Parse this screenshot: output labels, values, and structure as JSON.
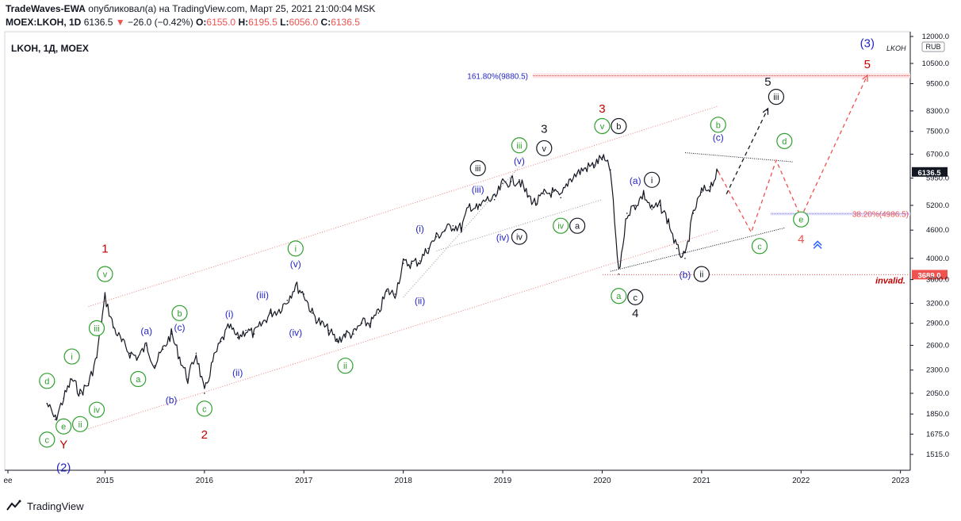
{
  "header": {
    "author": "TradeWaves-EWA",
    "published": "опубликовал(а) на TradingView.com, Март 25, 2021 21:00:04 MSK",
    "symbol": "MOEX:LKOH, 1D",
    "last": "6136.5",
    "change_arrow": "▼",
    "change": "−26.0 (−0.42%)",
    "o_label": "O:",
    "o": "6155.0",
    "h_label": "H:",
    "h": "6195.5",
    "l_label": "L:",
    "l": "6056.0",
    "c_label": "C:",
    "c": "6136.5"
  },
  "chart_title": "LKOH, 1Д, MOEX",
  "watermark": "LKOH",
  "currency": "RUB",
  "footer": {
    "brand": "TradingView"
  },
  "colors": {
    "up": "#131722",
    "accent_red": "#ef5350",
    "blue": "#2424c8",
    "green": "#2ea02e",
    "black": "#131722",
    "dark_red": "#c00000"
  },
  "chart_data": {
    "type": "line",
    "scale": "log",
    "x_ticks": [
      "ee",
      "2015",
      "2016",
      "2017",
      "2018",
      "2019",
      "2020",
      "2021",
      "2022",
      "2023"
    ],
    "y_ticks": [
      12000,
      10500,
      9500,
      8300,
      7500,
      6700,
      5950,
      5200,
      4600,
      4000,
      3600,
      3200,
      2900,
      2600,
      2300,
      2050,
      1850,
      1675,
      1515
    ],
    "y_tick_labels": [
      "12000.0",
      "10500.0",
      "9500.0",
      "8300.0",
      "7500.0",
      "6700.0",
      "5950.0",
      "5200.0",
      "4600.0",
      "4000.0",
      "3600.0",
      "3200.0",
      "2900.0",
      "2600.0",
      "2300.0",
      "2050.0",
      "1850.0",
      "1675.0",
      "1515.0"
    ],
    "ylim": [
      1400,
      12500
    ],
    "price": {
      "x": [
        "2014-06",
        "2014-07",
        "2014-08",
        "2014-09",
        "2014-10",
        "2014-11",
        "2014-12",
        "2015-01",
        "2015-02",
        "2015-03",
        "2015-04",
        "2015-05",
        "2015-06",
        "2015-07",
        "2015-08",
        "2015-09",
        "2015-10",
        "2015-11",
        "2015-12",
        "2016-01",
        "2016-02",
        "2016-03",
        "2016-04",
        "2016-05",
        "2016-06",
        "2016-07",
        "2016-08",
        "2016-09",
        "2016-10",
        "2016-11",
        "2016-12",
        "2017-01",
        "2017-02",
        "2017-03",
        "2017-04",
        "2017-05",
        "2017-06",
        "2017-07",
        "2017-08",
        "2017-09",
        "2017-10",
        "2017-11",
        "2017-12",
        "2018-01",
        "2018-02",
        "2018-03",
        "2018-04",
        "2018-05",
        "2018-06",
        "2018-07",
        "2018-08",
        "2018-09",
        "2018-10",
        "2018-11",
        "2018-12",
        "2019-01",
        "2019-02",
        "2019-03",
        "2019-04",
        "2019-05",
        "2019-06",
        "2019-07",
        "2019-08",
        "2019-09",
        "2019-10",
        "2019-11",
        "2019-12",
        "2020-01",
        "2020-02",
        "2020-03",
        "2020-04",
        "2020-05",
        "2020-06",
        "2020-07",
        "2020-08",
        "2020-09",
        "2020-10",
        "2020-11",
        "2020-12",
        "2021-01",
        "2021-02",
        "2021-03"
      ],
      "y": [
        1950,
        1800,
        2000,
        2200,
        2050,
        2150,
        2450,
        3300,
        2850,
        2650,
        2500,
        2450,
        2600,
        2350,
        2550,
        2750,
        2450,
        2200,
        2500,
        2050,
        2400,
        2650,
        2850,
        2700,
        2800,
        2750,
        2900,
        3050,
        3100,
        3250,
        3500,
        3350,
        3050,
        2900,
        2800,
        2650,
        2750,
        2750,
        2900,
        2900,
        3050,
        3400,
        3350,
        3900,
        3900,
        3950,
        4200,
        4450,
        4600,
        4700,
        4650,
        5200,
        5100,
        5350,
        5350,
        5800,
        5850,
        5900,
        5450,
        5250,
        5500,
        5550,
        5400,
        5900,
        6100,
        6250,
        6350,
        6600,
        6200,
        3700,
        5000,
        5200,
        5500,
        5100,
        5200,
        4800,
        4200,
        4000,
        5000,
        5550,
        5700,
        6136.5
      ]
    },
    "levels": [
      {
        "label": "161.80%(9880.5)",
        "value": 9880.5
      },
      {
        "label": "38.20%(4986.5)",
        "value": 4986.5
      },
      {
        "label": "3689.0",
        "value": 3689.0,
        "note": "invalid."
      }
    ],
    "last_price_label": "6136.5",
    "projection_red": {
      "x": [
        "2021-03",
        "2021-07",
        "2021-10",
        "2022-01",
        "2022-09"
      ],
      "y": [
        6150,
        4550,
        6500,
        4900,
        9900
      ]
    },
    "projection_black": {
      "x": [
        "2021-04",
        "2021-09"
      ],
      "y": [
        5500,
        8400
      ]
    },
    "wave_labels": [
      {
        "text": "(2)",
        "x": "2014-08",
        "y": 1420,
        "color": "blue",
        "style": "plain"
      },
      {
        "text": "Y",
        "x": "2014-08",
        "y": 1590,
        "color": "dark_red",
        "style": "plain"
      },
      {
        "text": "c",
        "x": "2014-06",
        "y": 1630,
        "color": "green",
        "style": "circle"
      },
      {
        "text": "e",
        "x": "2014-08",
        "y": 1740,
        "color": "green",
        "style": "circle"
      },
      {
        "text": "d",
        "x": "2014-06",
        "y": 2180,
        "color": "green",
        "style": "circle"
      },
      {
        "text": "i",
        "x": "2014-09",
        "y": 2460,
        "color": "green",
        "style": "circle"
      },
      {
        "text": "ii",
        "x": "2014-10",
        "y": 1760,
        "color": "green",
        "style": "circle"
      },
      {
        "text": "iii",
        "x": "2014-12",
        "y": 2830,
        "color": "green",
        "style": "circle"
      },
      {
        "text": "iv",
        "x": "2014-12",
        "y": 1890,
        "color": "green",
        "style": "circle"
      },
      {
        "text": "v",
        "x": "2015-01",
        "y": 3700,
        "color": "green",
        "style": "circle"
      },
      {
        "text": "1",
        "x": "2015-01",
        "y": 4200,
        "color": "dark_red",
        "style": "plain"
      },
      {
        "text": "(a)",
        "x": "2015-06",
        "y": 2800,
        "color": "blue",
        "style": "plain"
      },
      {
        "text": "a",
        "x": "2015-05",
        "y": 2200,
        "color": "green",
        "style": "circle"
      },
      {
        "text": "b",
        "x": "2015-10",
        "y": 3050,
        "color": "green",
        "style": "circle"
      },
      {
        "text": "(c)",
        "x": "2015-10",
        "y": 2850,
        "color": "blue",
        "style": "plain"
      },
      {
        "text": "(b)",
        "x": "2015-09",
        "y": 1990,
        "color": "blue",
        "style": "plain"
      },
      {
        "text": "c",
        "x": "2016-01",
        "y": 1900,
        "color": "green",
        "style": "circle"
      },
      {
        "text": "2",
        "x": "2016-01",
        "y": 1670,
        "color": "dark_red",
        "style": "plain"
      },
      {
        "text": "(i)",
        "x": "2016-04",
        "y": 3050,
        "color": "blue",
        "style": "plain"
      },
      {
        "text": "(ii)",
        "x": "2016-05",
        "y": 2280,
        "color": "blue",
        "style": "plain"
      },
      {
        "text": "(iii)",
        "x": "2016-08",
        "y": 3350,
        "color": "blue",
        "style": "plain"
      },
      {
        "text": "(iv)",
        "x": "2016-12",
        "y": 2780,
        "color": "blue",
        "style": "plain"
      },
      {
        "text": "(v)",
        "x": "2016-12",
        "y": 3900,
        "color": "blue",
        "style": "plain"
      },
      {
        "text": "i",
        "x": "2016-12",
        "y": 4200,
        "color": "green",
        "style": "circle"
      },
      {
        "text": "ii",
        "x": "2017-06",
        "y": 2350,
        "color": "green",
        "style": "circle"
      },
      {
        "text": "(i)",
        "x": "2018-03",
        "y": 4650,
        "color": "blue",
        "style": "plain"
      },
      {
        "text": "(ii)",
        "x": "2018-03",
        "y": 3250,
        "color": "blue",
        "style": "plain"
      },
      {
        "text": "(iii)",
        "x": "2018-10",
        "y": 5650,
        "color": "blue",
        "style": "plain"
      },
      {
        "text": "iii",
        "x": "2018-10",
        "y": 6250,
        "color": "black",
        "style": "circle"
      },
      {
        "text": "(iv)",
        "x": "2019-01",
        "y": 4450,
        "color": "blue",
        "style": "plain"
      },
      {
        "text": "iv",
        "x": "2019-03",
        "y": 4450,
        "color": "black",
        "style": "circle"
      },
      {
        "text": "(v)",
        "x": "2019-03",
        "y": 6500,
        "color": "blue",
        "style": "plain"
      },
      {
        "text": "iii",
        "x": "2019-03",
        "y": 7000,
        "color": "green",
        "style": "circle"
      },
      {
        "text": "v",
        "x": "2019-06",
        "y": 6900,
        "color": "black",
        "style": "circle"
      },
      {
        "text": "3",
        "x": "2019-06",
        "y": 7600,
        "color": "black",
        "style": "plain"
      },
      {
        "text": "iv",
        "x": "2019-08",
        "y": 4700,
        "color": "green",
        "style": "circle"
      },
      {
        "text": "a",
        "x": "2019-10",
        "y": 4700,
        "color": "black",
        "style": "circle"
      },
      {
        "text": "v",
        "x": "2020-01",
        "y": 7700,
        "color": "green",
        "style": "circle"
      },
      {
        "text": "b",
        "x": "2020-03",
        "y": 7700,
        "color": "black",
        "style": "circle"
      },
      {
        "text": "3",
        "x": "2020-01",
        "y": 8400,
        "color": "dark_red",
        "style": "plain"
      },
      {
        "text": "a",
        "x": "2020-03",
        "y": 3320,
        "color": "green",
        "style": "circle"
      },
      {
        "text": "c",
        "x": "2020-05",
        "y": 3300,
        "color": "black",
        "style": "circle"
      },
      {
        "text": "4",
        "x": "2020-05",
        "y": 3050,
        "color": "black",
        "style": "plain"
      },
      {
        "text": "(a)",
        "x": "2020-05",
        "y": 5900,
        "color": "blue",
        "style": "plain"
      },
      {
        "text": "i",
        "x": "2020-07",
        "y": 5900,
        "color": "black",
        "style": "circle"
      },
      {
        "text": "(b)",
        "x": "2020-11",
        "y": 3700,
        "color": "blue",
        "style": "plain"
      },
      {
        "text": "ii",
        "x": "2021-01",
        "y": 3700,
        "color": "black",
        "style": "circle"
      },
      {
        "text": "(c)",
        "x": "2021-03",
        "y": 7300,
        "color": "blue",
        "style": "plain"
      },
      {
        "text": "b",
        "x": "2021-03",
        "y": 7750,
        "color": "green",
        "style": "circle"
      },
      {
        "text": "c",
        "x": "2021-08",
        "y": 4250,
        "color": "green",
        "style": "circle"
      },
      {
        "text": "d",
        "x": "2021-11",
        "y": 7150,
        "color": "green",
        "style": "circle"
      },
      {
        "text": "e",
        "x": "2022-01",
        "y": 4850,
        "color": "green",
        "style": "circle"
      },
      {
        "text": "4",
        "x": "2022-01",
        "y": 4400,
        "color": "accent_red",
        "style": "plain"
      },
      {
        "text": "iii",
        "x": "2021-10",
        "y": 8900,
        "color": "black",
        "style": "circle"
      },
      {
        "text": "5",
        "x": "2021-09",
        "y": 9600,
        "color": "black",
        "style": "plain"
      },
      {
        "text": "5",
        "x": "2022-09",
        "y": 10450,
        "color": "dark_red",
        "style": "plain"
      },
      {
        "text": "(3)",
        "x": "2022-09",
        "y": 11600,
        "color": "blue",
        "style": "plain"
      }
    ]
  }
}
